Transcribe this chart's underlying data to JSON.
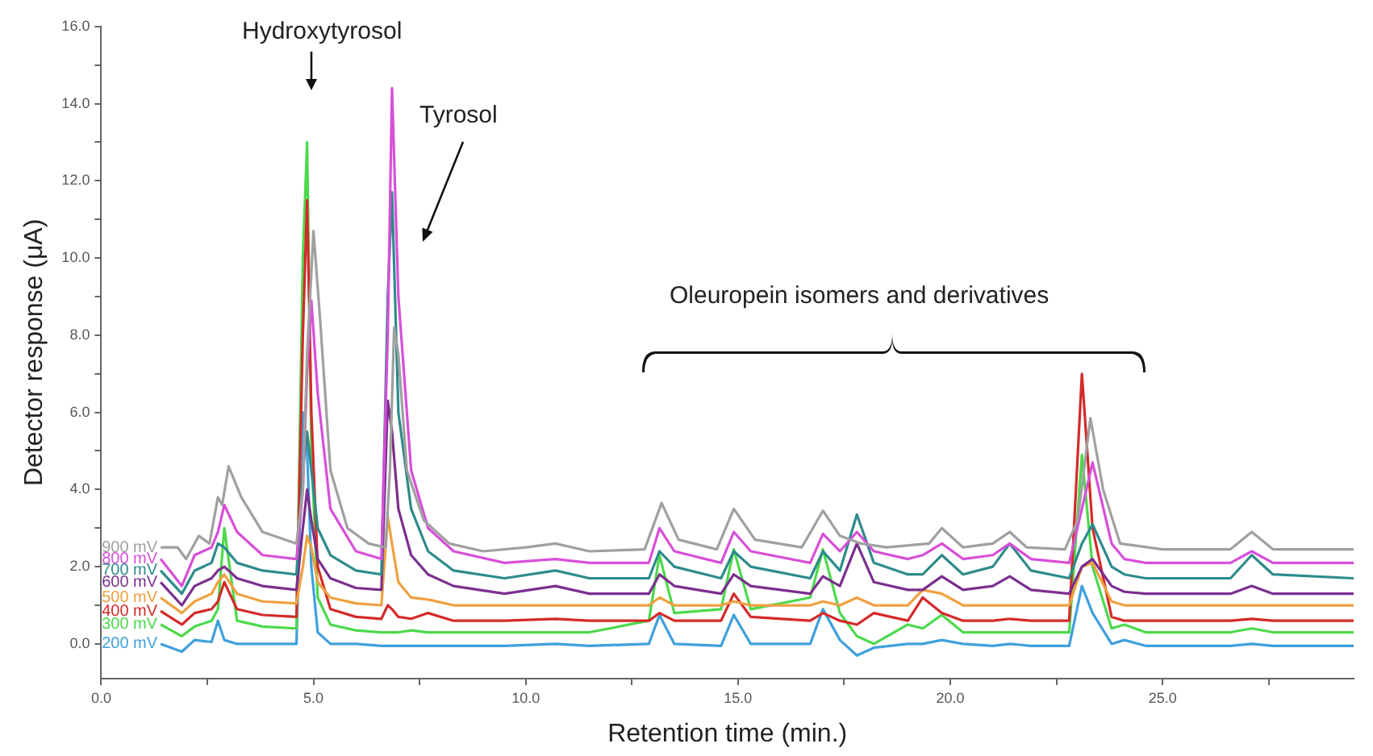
{
  "chart_data": {
    "type": "line",
    "xlabel": "Retention time (min.)",
    "ylabel": "Detector response (μA)",
    "x": [
      1.4,
      1.9,
      2.2,
      2.6,
      2.75,
      2.9,
      3.2,
      3.8,
      4.6,
      4.75,
      4.85,
      4.95,
      5.1,
      5.4,
      6.0,
      6.6,
      6.75,
      6.85,
      7.0,
      7.3,
      7.7,
      8.3,
      9.5,
      10.7,
      11.5,
      12.9,
      13.15,
      13.5,
      14.6,
      14.9,
      15.3,
      16.7,
      17.0,
      17.4,
      17.8,
      18.2,
      19.0,
      19.35,
      19.8,
      20.3,
      21.0,
      21.4,
      21.9,
      22.8,
      23.1,
      23.35,
      23.8,
      24.1,
      24.6,
      26.6,
      27.1,
      27.6,
      29.5
    ],
    "series": [
      {
        "name": "900 mV",
        "color": "#a0a0a0",
        "x": [
          1.4,
          1.8,
          2.0,
          2.3,
          2.55,
          2.75,
          2.85,
          3.0,
          3.3,
          3.8,
          4.6,
          4.75,
          4.85,
          5.0,
          5.15,
          5.4,
          5.8,
          6.3,
          6.7,
          6.8,
          6.9,
          7.0,
          7.2,
          7.6,
          8.2,
          9.0,
          10.0,
          10.7,
          11.5,
          12.8,
          13.2,
          13.6,
          14.5,
          14.9,
          15.4,
          16.5,
          17.0,
          17.4,
          17.9,
          18.5,
          19.5,
          19.8,
          20.3,
          21.0,
          21.4,
          21.8,
          22.7,
          23.0,
          23.3,
          23.6,
          24.0,
          25.0,
          26.6,
          27.1,
          27.6,
          29.5
        ],
        "values": [
          2.5,
          2.5,
          2.2,
          2.8,
          2.6,
          3.8,
          3.6,
          4.6,
          3.8,
          2.9,
          2.6,
          4.0,
          7.5,
          10.7,
          8.5,
          4.5,
          3.0,
          2.6,
          2.5,
          4.5,
          8.2,
          7.5,
          4.5,
          3.2,
          2.6,
          2.4,
          2.5,
          2.6,
          2.4,
          2.45,
          3.65,
          2.7,
          2.45,
          3.5,
          2.7,
          2.5,
          3.45,
          2.8,
          2.6,
          2.5,
          2.6,
          3.0,
          2.5,
          2.6,
          2.9,
          2.5,
          2.45,
          3.2,
          5.85,
          4.0,
          2.6,
          2.45,
          2.45,
          2.9,
          2.45,
          2.45
        ]
      },
      {
        "name": "800 mV",
        "color": "#d84fd8",
        "values": [
          2.2,
          1.5,
          2.3,
          2.5,
          2.9,
          3.6,
          2.9,
          2.3,
          2.2,
          4.0,
          7.0,
          8.9,
          6.5,
          3.5,
          2.4,
          2.2,
          8.0,
          14.4,
          9.0,
          4.5,
          3.0,
          2.4,
          2.1,
          2.2,
          2.1,
          2.1,
          3.0,
          2.4,
          2.1,
          2.9,
          2.4,
          2.1,
          2.85,
          2.4,
          2.9,
          2.4,
          2.2,
          2.3,
          2.6,
          2.2,
          2.3,
          2.6,
          2.2,
          2.1,
          3.5,
          4.7,
          2.6,
          2.2,
          2.1,
          2.1,
          2.4,
          2.1,
          2.1
        ]
      },
      {
        "name": "700 mV",
        "color": "#2e8b8b",
        "values": [
          1.9,
          1.3,
          1.9,
          2.1,
          2.6,
          2.5,
          2.1,
          1.9,
          1.8,
          4.5,
          5.5,
          4.5,
          3.0,
          2.3,
          1.9,
          1.8,
          9.0,
          11.7,
          6.0,
          3.5,
          2.4,
          1.9,
          1.7,
          1.9,
          1.7,
          1.7,
          2.4,
          2.0,
          1.7,
          2.4,
          2.0,
          1.7,
          2.4,
          1.9,
          3.35,
          2.1,
          1.8,
          1.8,
          2.3,
          1.8,
          2.0,
          2.6,
          1.9,
          1.7,
          2.6,
          3.1,
          2.0,
          1.8,
          1.7,
          1.7,
          2.3,
          1.8,
          1.7
        ]
      },
      {
        "name": "600 mV",
        "color": "#7b2f8e",
        "values": [
          1.6,
          1.0,
          1.5,
          1.7,
          1.9,
          2.0,
          1.7,
          1.5,
          1.4,
          3.0,
          4.0,
          3.2,
          2.2,
          1.7,
          1.45,
          1.4,
          6.3,
          5.5,
          3.5,
          2.3,
          1.8,
          1.5,
          1.3,
          1.5,
          1.3,
          1.3,
          1.8,
          1.5,
          1.3,
          1.8,
          1.5,
          1.3,
          1.75,
          1.5,
          2.6,
          1.6,
          1.4,
          1.4,
          1.75,
          1.4,
          1.5,
          1.75,
          1.4,
          1.3,
          2.0,
          2.2,
          1.5,
          1.35,
          1.3,
          1.3,
          1.5,
          1.3,
          1.3
        ]
      },
      {
        "name": "500 mV",
        "color": "#f0a040",
        "values": [
          1.2,
          0.8,
          1.1,
          1.3,
          1.6,
          1.8,
          1.3,
          1.1,
          1.05,
          2.0,
          2.8,
          2.5,
          1.6,
          1.2,
          1.05,
          1.0,
          3.3,
          2.6,
          1.6,
          1.2,
          1.15,
          1.0,
          1.0,
          1.0,
          1.0,
          1.0,
          1.2,
          1.0,
          1.0,
          1.1,
          1.0,
          1.0,
          1.1,
          1.0,
          1.2,
          1.0,
          1.0,
          1.4,
          1.3,
          1.0,
          1.0,
          1.0,
          1.0,
          1.0,
          2.0,
          2.1,
          1.1,
          1.0,
          1.0,
          1.0,
          1.0,
          1.0,
          1.0
        ]
      },
      {
        "name": "400 mV",
        "color": "#d42a2a",
        "values": [
          0.85,
          0.5,
          0.8,
          0.9,
          1.1,
          1.6,
          0.9,
          0.75,
          0.7,
          8.0,
          11.5,
          6.0,
          2.0,
          0.9,
          0.7,
          0.65,
          1.0,
          0.9,
          0.7,
          0.65,
          0.8,
          0.6,
          0.6,
          0.65,
          0.6,
          0.6,
          0.8,
          0.6,
          0.6,
          1.3,
          0.7,
          0.6,
          0.8,
          0.6,
          0.5,
          0.8,
          0.6,
          1.2,
          0.8,
          0.6,
          0.6,
          0.65,
          0.6,
          0.6,
          7.0,
          3.0,
          0.7,
          0.6,
          0.6,
          0.6,
          0.65,
          0.6,
          0.6
        ]
      },
      {
        "name": "300 mV",
        "color": "#4cd94c",
        "values": [
          0.5,
          0.2,
          0.45,
          0.6,
          0.9,
          3.0,
          0.6,
          0.45,
          0.4,
          10.0,
          13.0,
          5.0,
          1.2,
          0.5,
          0.35,
          0.3,
          0.3,
          0.3,
          0.3,
          0.35,
          0.3,
          0.3,
          0.3,
          0.3,
          0.3,
          0.6,
          2.3,
          0.8,
          0.9,
          2.45,
          0.9,
          1.2,
          2.45,
          0.8,
          0.2,
          0.0,
          0.5,
          0.4,
          0.75,
          0.3,
          0.3,
          0.3,
          0.3,
          0.3,
          4.9,
          2.0,
          0.4,
          0.5,
          0.3,
          0.3,
          0.4,
          0.3,
          0.3
        ]
      },
      {
        "name": "200 mV",
        "color": "#3fa0dc",
        "values": [
          0.0,
          -0.2,
          0.1,
          0.05,
          0.6,
          0.1,
          0.0,
          0.0,
          0.0,
          6.0,
          5.0,
          2.0,
          0.3,
          0.0,
          0.0,
          -0.05,
          -0.05,
          -0.05,
          -0.05,
          -0.05,
          -0.05,
          -0.05,
          -0.05,
          0.0,
          -0.05,
          0.0,
          0.75,
          0.0,
          -0.05,
          0.75,
          0.0,
          0.0,
          0.9,
          0.1,
          -0.3,
          -0.1,
          0.0,
          0.0,
          0.1,
          0.0,
          -0.05,
          0.0,
          -0.05,
          -0.05,
          1.5,
          0.8,
          0.0,
          0.1,
          -0.05,
          -0.05,
          0.0,
          -0.05,
          -0.05
        ]
      }
    ],
    "xlim": [
      0,
      29.5
    ],
    "xticks": [
      {
        "value": 0,
        "label": "0.0"
      },
      {
        "value": 2.5,
        "label": null
      },
      {
        "value": 5,
        "label": "5.0"
      },
      {
        "value": 7.5,
        "label": null
      },
      {
        "value": 10,
        "label": "10.0"
      },
      {
        "value": 12.5,
        "label": null
      },
      {
        "value": 15,
        "label": "15.0"
      },
      {
        "value": 17.5,
        "label": null
      },
      {
        "value": 20,
        "label": "20.0"
      },
      {
        "value": 22.5,
        "label": null
      },
      {
        "value": 25,
        "label": "25.0"
      },
      {
        "value": 27.5,
        "label": null
      }
    ],
    "ylim": [
      -0.9,
      16
    ],
    "yticks": [
      {
        "value": 0,
        "label": "0.0"
      },
      {
        "value": 1,
        "label": null
      },
      {
        "value": 2,
        "label": "2.0"
      },
      {
        "value": 3,
        "label": null
      },
      {
        "value": 4,
        "label": "4.0"
      },
      {
        "value": 5,
        "label": null
      },
      {
        "value": 6,
        "label": "6.0"
      },
      {
        "value": 7,
        "label": null
      },
      {
        "value": 8,
        "label": "8.0"
      },
      {
        "value": 9,
        "label": null
      },
      {
        "value": 10,
        "label": "10.0"
      },
      {
        "value": 11,
        "label": null
      },
      {
        "value": 12,
        "label": "12.0"
      },
      {
        "value": 13,
        "label": null
      },
      {
        "value": 14,
        "label": "14.0"
      },
      {
        "value": 15,
        "label": null
      },
      {
        "value": 16,
        "label": "16.0"
      }
    ],
    "annotations": [
      "Hydroxytyrosol",
      "Tyrosol",
      "Oleuropein isomers and derivatives"
    ],
    "grid": false,
    "legend": false,
    "marker": "none",
    "line_style": "solid"
  }
}
